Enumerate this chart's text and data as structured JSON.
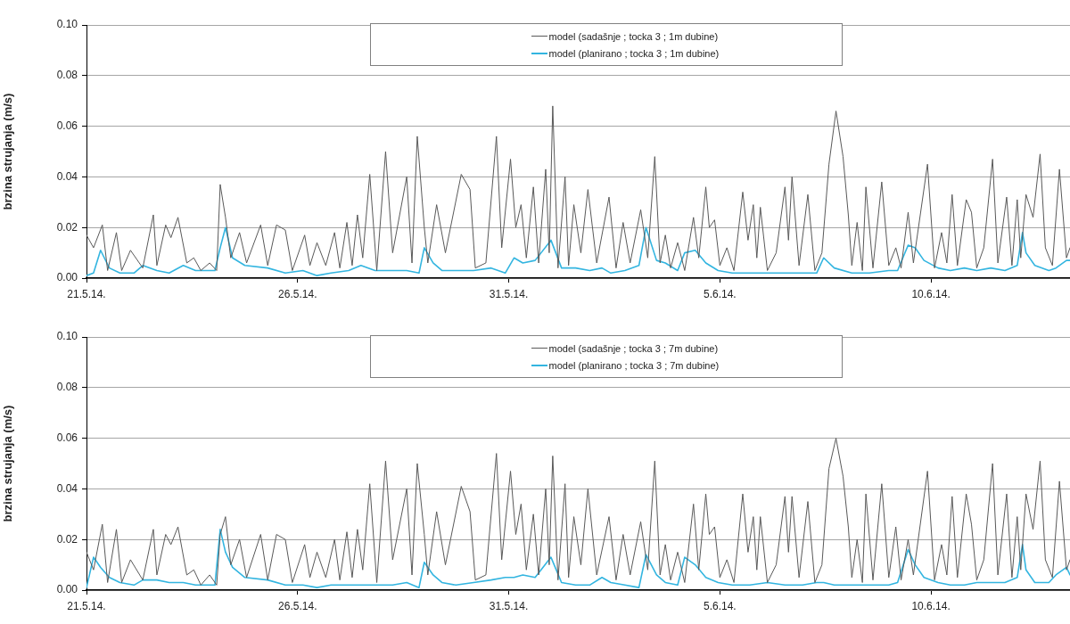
{
  "chart_data": [
    {
      "type": "line",
      "ylabel": "brzina strujanja (m/s)",
      "legend": "top",
      "grid": "y",
      "line_style": "solid",
      "marker": "none",
      "xlim": [
        "--05-21",
        "--06-13T07:00"
      ],
      "xticks": [
        {
          "value": "--05-21",
          "label": "21.5.14."
        },
        {
          "value": "--05-26",
          "label": "26.5.14."
        },
        {
          "value": "--05-31",
          "label": "31.5.14."
        },
        {
          "value": "--06-05",
          "label": "5.6.14."
        },
        {
          "value": "--06-10",
          "label": "10.6.14."
        }
      ],
      "ylim": [
        0,
        0.1
      ],
      "yticks": [
        {
          "value": 0,
          "label": "0.00"
        },
        {
          "value": 0.02,
          "label": "0.02"
        },
        {
          "value": 0.04,
          "label": "0.04"
        },
        {
          "value": 0.06,
          "label": "0.06"
        },
        {
          "value": 0.08,
          "label": "0.08"
        },
        {
          "value": 0.1,
          "label": "0.10"
        }
      ],
      "series": [
        {
          "name": "model (sadašnje ; tocka 3 ; 1m dubine)",
          "color": "#595959",
          "x": [
            "--05-21T00:00",
            "--05-21T04:00",
            "--05-21T09:00",
            "--05-21T12:00",
            "--05-21T17:00",
            "--05-21T20:00",
            "--05-22T01:00",
            "--05-22T08:00",
            "--05-22T14:00",
            "--05-22T16:00",
            "--05-22T21:00",
            "--05-23T00:00",
            "--05-23T04:00",
            "--05-23T09:00",
            "--05-23T13:00",
            "--05-23T17:00",
            "--05-23T22:00",
            "--05-24T02:00",
            "--05-24T04:00",
            "--05-24T07:00",
            "--05-24T10:00",
            "--05-24T15:00",
            "--05-24T19:00",
            "--05-25T03:00",
            "--05-25T07:00",
            "--05-25T12:00",
            "--05-25T17:00",
            "--05-25T21:00",
            "--05-26T04:00",
            "--05-26T07:00",
            "--05-26T11:00",
            "--05-26T16:00",
            "--05-26T21:00",
            "--05-27T00:00",
            "--05-27T04:00",
            "--05-27T07:00",
            "--05-27T10:00",
            "--05-27T13:00",
            "--05-27T17:00",
            "--05-27T21:00",
            "--05-28T02:00",
            "--05-28T06:00",
            "--05-28T14:00",
            "--05-28T17:00",
            "--05-28T20:00",
            "--05-29T00:00",
            "--05-29T02:00",
            "--05-29T07:00",
            "--05-29T12:00",
            "--05-29T21:00",
            "--05-30T02:00",
            "--05-30T05:00",
            "--05-30T11:00",
            "--05-30T17:00",
            "--05-30T20:00",
            "--05-31T01:00",
            "--05-31T04:00",
            "--05-31T07:00",
            "--05-31T10:00",
            "--05-31T14:00",
            "--05-31T17:00",
            "--05-31T21:00",
            "--05-31T23:00",
            "--06-01T01:00",
            "--06-01T04:00",
            "--06-01T08:00",
            "--06-01T10:00",
            "--06-01T13:00",
            "--06-01T17:00",
            "--06-01T21:00",
            "--06-02T02:00",
            "--06-02T09:00",
            "--06-02T13:00",
            "--06-02T17:00",
            "--06-02T21:00",
            "--06-03T03:00",
            "--06-03T07:00",
            "--06-03T11:00",
            "--06-03T14:00",
            "--06-03T17:00",
            "--06-03T20:00",
            "--06-04T00:00",
            "--06-04T04:00",
            "--06-04T09:00",
            "--06-04T12:00",
            "--06-04T16:00",
            "--06-04T18:00",
            "--06-04T21:00",
            "--06-05T00:00",
            "--06-05T04:00",
            "--06-05T08:00",
            "--06-05T13:00",
            "--06-05T16:00",
            "--06-05T19:00",
            "--06-05T21:00",
            "--06-05T23:00",
            "--06-06T03:00",
            "--06-06T08:00",
            "--06-06T13:00",
            "--06-06T15:00",
            "--06-06T17:00",
            "--06-06T21:00",
            "--06-07T02:00",
            "--06-07T06:00",
            "--06-07T10:00",
            "--06-07T14:00",
            "--06-07T18:00",
            "--06-07T22:00",
            "--06-08T01:00",
            "--06-08T03:00",
            "--06-08T06:00",
            "--06-08T09:00",
            "--06-08T11:00",
            "--06-08T15:00",
            "--06-08T20:00",
            "--06-09T00:00",
            "--06-09T04:00",
            "--06-09T07:00",
            "--06-09T11:00",
            "--06-09T14:00",
            "--06-09T22:00",
            "--06-10T02:00",
            "--06-10T06:00",
            "--06-10T09:00",
            "--06-10T12:00",
            "--06-10T15:00",
            "--06-10T20:00",
            "--06-10T23:00",
            "--06-11T02:00",
            "--06-11T06:00",
            "--06-11T11:00",
            "--06-11T14:00",
            "--06-11T19:00",
            "--06-11T22:00",
            "--06-12T01:00",
            "--06-12T03:00",
            "--06-12T06:00",
            "--06-12T10:00",
            "--06-12T14:00",
            "--06-12T17:00",
            "--06-12T21:00",
            "--06-13T01:00",
            "--06-13T05:00",
            "--06-13T07:00"
          ],
          "values": [
            0.017,
            0.012,
            0.021,
            0.003,
            0.018,
            0.003,
            0.011,
            0.004,
            0.025,
            0.005,
            0.021,
            0.016,
            0.024,
            0.006,
            0.008,
            0.003,
            0.006,
            0.003,
            0.037,
            0.024,
            0.008,
            0.018,
            0.006,
            0.021,
            0.005,
            0.021,
            0.019,
            0.003,
            0.017,
            0.005,
            0.014,
            0.005,
            0.018,
            0.004,
            0.022,
            0.005,
            0.025,
            0.008,
            0.041,
            0.003,
            0.05,
            0.01,
            0.04,
            0.006,
            0.056,
            0.02,
            0.006,
            0.029,
            0.01,
            0.041,
            0.035,
            0.004,
            0.006,
            0.056,
            0.012,
            0.047,
            0.02,
            0.029,
            0.008,
            0.036,
            0.006,
            0.043,
            0.01,
            0.068,
            0.004,
            0.04,
            0.005,
            0.029,
            0.01,
            0.035,
            0.006,
            0.032,
            0.004,
            0.022,
            0.006,
            0.027,
            0.008,
            0.048,
            0.006,
            0.017,
            0.004,
            0.014,
            0.003,
            0.024,
            0.008,
            0.036,
            0.02,
            0.023,
            0.005,
            0.012,
            0.003,
            0.034,
            0.015,
            0.029,
            0.008,
            0.028,
            0.003,
            0.01,
            0.036,
            0.015,
            0.04,
            0.005,
            0.033,
            0.003,
            0.01,
            0.045,
            0.066,
            0.048,
            0.025,
            0.005,
            0.022,
            0.003,
            0.036,
            0.004,
            0.038,
            0.005,
            0.012,
            0.004,
            0.026,
            0.006,
            0.045,
            0.004,
            0.018,
            0.006,
            0.033,
            0.005,
            0.031,
            0.026,
            0.004,
            0.012,
            0.047,
            0.006,
            0.032,
            0.005,
            0.031,
            0.008,
            0.033,
            0.024,
            0.049,
            0.012,
            0.005,
            0.043,
            0.008,
            0.012
          ]
        },
        {
          "name": "model (planirano ; tocka 3 ; 1m dubine)",
          "color": "#33b5e0",
          "x": [
            "--05-21T00:00",
            "--05-21T04:00",
            "--05-21T08:00",
            "--05-21T13:00",
            "--05-21T19:00",
            "--05-22T03:00",
            "--05-22T08:00",
            "--05-22T16:00",
            "--05-22T23:00",
            "--05-23T07:00",
            "--05-23T14:00",
            "--05-24T01:00",
            "--05-24T04:00",
            "--05-24T07:00",
            "--05-24T11:00",
            "--05-24T18:00",
            "--05-25T07:00",
            "--05-25T17:00",
            "--05-26T03:00",
            "--05-26T11:00",
            "--05-26T19:00",
            "--05-27T05:00",
            "--05-27T12:00",
            "--05-27T20:00",
            "--05-28T06:00",
            "--05-28T14:00",
            "--05-28T21:00",
            "--05-29T00:00",
            "--05-29T05:00",
            "--05-29T10:00",
            "--05-29T18:00",
            "--05-30T04:00",
            "--05-30T14:00",
            "--05-30T22:00",
            "--05-31T03:00",
            "--05-31T08:00",
            "--05-31T15:00",
            "--06-01T00:00",
            "--06-01T06:00",
            "--06-01T14:00",
            "--06-01T22:00",
            "--06-02T05:00",
            "--06-02T10:00",
            "--06-02T18:00",
            "--06-03T02:00",
            "--06-03T06:00",
            "--06-03T12:00",
            "--06-03T17:00",
            "--06-04T00:00",
            "--06-04T04:00",
            "--06-04T10:00",
            "--06-04T16:00",
            "--06-04T23:00",
            "--06-05T07:00",
            "--06-05T17:00",
            "--06-06T03:00",
            "--06-06T13:00",
            "--06-06T23:00",
            "--06-07T07:00",
            "--06-07T11:00",
            "--06-07T17:00",
            "--06-08T03:00",
            "--06-08T13:00",
            "--06-09T00:00",
            "--06-09T05:00",
            "--06-09T11:00",
            "--06-09T15:00",
            "--06-09T20:00",
            "--06-10T04:00",
            "--06-10T11:00",
            "--06-10T19:00",
            "--06-11T02:00",
            "--06-11T10:00",
            "--06-11T18:00",
            "--06-12T01:00",
            "--06-12T04:00",
            "--06-12T06:00",
            "--06-12T11:00",
            "--06-12T19:00",
            "--06-12T23:00",
            "--06-13T05:00",
            "--06-13T07:00"
          ],
          "values": [
            0.001,
            0.002,
            0.011,
            0.004,
            0.002,
            0.002,
            0.005,
            0.003,
            0.002,
            0.005,
            0.003,
            0.003,
            0.012,
            0.02,
            0.008,
            0.005,
            0.004,
            0.002,
            0.003,
            0.001,
            0.002,
            0.003,
            0.005,
            0.003,
            0.003,
            0.003,
            0.002,
            0.012,
            0.006,
            0.003,
            0.003,
            0.003,
            0.004,
            0.002,
            0.008,
            0.006,
            0.007,
            0.015,
            0.004,
            0.004,
            0.003,
            0.004,
            0.002,
            0.003,
            0.005,
            0.02,
            0.007,
            0.006,
            0.003,
            0.01,
            0.011,
            0.006,
            0.003,
            0.002,
            0.002,
            0.002,
            0.002,
            0.002,
            0.002,
            0.008,
            0.004,
            0.002,
            0.002,
            0.003,
            0.003,
            0.013,
            0.012,
            0.007,
            0.004,
            0.003,
            0.004,
            0.003,
            0.004,
            0.003,
            0.005,
            0.018,
            0.01,
            0.005,
            0.003,
            0.004,
            0.007,
            0.007
          ]
        }
      ]
    },
    {
      "type": "line",
      "ylabel": "brzina strujanja (m/s)",
      "legend": "top",
      "grid": "y",
      "line_style": "solid",
      "marker": "none",
      "xlim": [
        "--05-21",
        "--06-13T07:00"
      ],
      "xticks": [
        {
          "value": "--05-21",
          "label": "21.5.14."
        },
        {
          "value": "--05-26",
          "label": "26.5.14."
        },
        {
          "value": "--05-31",
          "label": "31.5.14."
        },
        {
          "value": "--06-05",
          "label": "5.6.14."
        },
        {
          "value": "--06-10",
          "label": "10.6.14."
        }
      ],
      "ylim": [
        0,
        0.1
      ],
      "yticks": [
        {
          "value": 0,
          "label": "0.00"
        },
        {
          "value": 0.02,
          "label": "0.02"
        },
        {
          "value": 0.04,
          "label": "0.04"
        },
        {
          "value": 0.06,
          "label": "0.06"
        },
        {
          "value": 0.08,
          "label": "0.08"
        },
        {
          "value": 0.1,
          "label": "0.10"
        }
      ],
      "series": [
        {
          "name": "model (sadašnje ; tocka 3 ; 7m dubine)",
          "color": "#595959",
          "x": [
            "--05-21T00:00",
            "--05-21T04:00",
            "--05-21T09:00",
            "--05-21T12:00",
            "--05-21T17:00",
            "--05-21T20:00",
            "--05-22T01:00",
            "--05-22T08:00",
            "--05-22T14:00",
            "--05-22T16:00",
            "--05-22T21:00",
            "--05-23T00:00",
            "--05-23T04:00",
            "--05-23T09:00",
            "--05-23T13:00",
            "--05-23T17:00",
            "--05-23T22:00",
            "--05-24T02:00",
            "--05-24T04:00",
            "--05-24T07:00",
            "--05-24T10:00",
            "--05-24T15:00",
            "--05-24T19:00",
            "--05-25T03:00",
            "--05-25T07:00",
            "--05-25T12:00",
            "--05-25T17:00",
            "--05-25T21:00",
            "--05-26T04:00",
            "--05-26T07:00",
            "--05-26T11:00",
            "--05-26T16:00",
            "--05-26T21:00",
            "--05-27T00:00",
            "--05-27T04:00",
            "--05-27T07:00",
            "--05-27T10:00",
            "--05-27T13:00",
            "--05-27T17:00",
            "--05-27T21:00",
            "--05-28T02:00",
            "--05-28T06:00",
            "--05-28T14:00",
            "--05-28T17:00",
            "--05-28T20:00",
            "--05-29T00:00",
            "--05-29T02:00",
            "--05-29T07:00",
            "--05-29T12:00",
            "--05-29T21:00",
            "--05-30T02:00",
            "--05-30T05:00",
            "--05-30T11:00",
            "--05-30T17:00",
            "--05-30T20:00",
            "--05-31T01:00",
            "--05-31T04:00",
            "--05-31T07:00",
            "--05-31T10:00",
            "--05-31T14:00",
            "--05-31T17:00",
            "--05-31T21:00",
            "--05-31T23:00",
            "--06-01T01:00",
            "--06-01T04:00",
            "--06-01T08:00",
            "--06-01T10:00",
            "--06-01T13:00",
            "--06-01T17:00",
            "--06-01T21:00",
            "--06-02T02:00",
            "--06-02T09:00",
            "--06-02T13:00",
            "--06-02T17:00",
            "--06-02T21:00",
            "--06-03T03:00",
            "--06-03T07:00",
            "--06-03T11:00",
            "--06-03T14:00",
            "--06-03T17:00",
            "--06-03T20:00",
            "--06-04T00:00",
            "--06-04T04:00",
            "--06-04T09:00",
            "--06-04T12:00",
            "--06-04T16:00",
            "--06-04T18:00",
            "--06-04T21:00",
            "--06-05T00:00",
            "--06-05T04:00",
            "--06-05T08:00",
            "--06-05T13:00",
            "--06-05T16:00",
            "--06-05T19:00",
            "--06-05T21:00",
            "--06-05T23:00",
            "--06-06T03:00",
            "--06-06T08:00",
            "--06-06T13:00",
            "--06-06T15:00",
            "--06-06T17:00",
            "--06-06T21:00",
            "--06-07T02:00",
            "--06-07T06:00",
            "--06-07T10:00",
            "--06-07T14:00",
            "--06-07T18:00",
            "--06-07T22:00",
            "--06-08T01:00",
            "--06-08T03:00",
            "--06-08T06:00",
            "--06-08T09:00",
            "--06-08T11:00",
            "--06-08T15:00",
            "--06-08T20:00",
            "--06-09T00:00",
            "--06-09T04:00",
            "--06-09T07:00",
            "--06-09T11:00",
            "--06-09T14:00",
            "--06-09T22:00",
            "--06-10T02:00",
            "--06-10T06:00",
            "--06-10T09:00",
            "--06-10T12:00",
            "--06-10T15:00",
            "--06-10T20:00",
            "--06-10T23:00",
            "--06-11T02:00",
            "--06-11T06:00",
            "--06-11T11:00",
            "--06-11T14:00",
            "--06-11T19:00",
            "--06-11T22:00",
            "--06-12T01:00",
            "--06-12T03:00",
            "--06-12T06:00",
            "--06-12T10:00",
            "--06-12T14:00",
            "--06-12T17:00",
            "--06-12T21:00",
            "--06-13T01:00",
            "--06-13T05:00",
            "--06-13T07:00"
          ],
          "values": [
            0.015,
            0.008,
            0.026,
            0.003,
            0.024,
            0.003,
            0.012,
            0.004,
            0.024,
            0.006,
            0.022,
            0.018,
            0.025,
            0.006,
            0.008,
            0.002,
            0.006,
            0.002,
            0.022,
            0.029,
            0.01,
            0.02,
            0.005,
            0.022,
            0.004,
            0.022,
            0.02,
            0.003,
            0.018,
            0.005,
            0.015,
            0.005,
            0.02,
            0.004,
            0.023,
            0.005,
            0.024,
            0.008,
            0.042,
            0.003,
            0.051,
            0.012,
            0.04,
            0.006,
            0.05,
            0.022,
            0.006,
            0.031,
            0.01,
            0.041,
            0.031,
            0.004,
            0.006,
            0.054,
            0.012,
            0.047,
            0.022,
            0.034,
            0.008,
            0.03,
            0.006,
            0.04,
            0.01,
            0.053,
            0.004,
            0.042,
            0.005,
            0.029,
            0.01,
            0.04,
            0.006,
            0.029,
            0.004,
            0.022,
            0.006,
            0.027,
            0.008,
            0.051,
            0.006,
            0.018,
            0.004,
            0.015,
            0.003,
            0.034,
            0.008,
            0.038,
            0.022,
            0.025,
            0.005,
            0.012,
            0.003,
            0.038,
            0.015,
            0.029,
            0.008,
            0.029,
            0.003,
            0.01,
            0.037,
            0.015,
            0.037,
            0.005,
            0.035,
            0.003,
            0.01,
            0.048,
            0.06,
            0.045,
            0.025,
            0.005,
            0.02,
            0.003,
            0.038,
            0.004,
            0.042,
            0.005,
            0.025,
            0.004,
            0.02,
            0.006,
            0.047,
            0.004,
            0.018,
            0.006,
            0.037,
            0.005,
            0.038,
            0.026,
            0.004,
            0.012,
            0.05,
            0.006,
            0.038,
            0.005,
            0.029,
            0.008,
            0.038,
            0.024,
            0.051,
            0.012,
            0.005,
            0.043,
            0.008,
            0.012
          ]
        },
        {
          "name": "model (planirano ; tocka 3 ; 7m dubine)",
          "color": "#33b5e0",
          "x": [
            "--05-21T00:00",
            "--05-21T04:00",
            "--05-21T08:00",
            "--05-21T13:00",
            "--05-21T19:00",
            "--05-22T03:00",
            "--05-22T08:00",
            "--05-22T16:00",
            "--05-22T23:00",
            "--05-23T07:00",
            "--05-23T14:00",
            "--05-24T01:00",
            "--05-24T04:00",
            "--05-24T07:00",
            "--05-24T11:00",
            "--05-24T18:00",
            "--05-25T07:00",
            "--05-25T17:00",
            "--05-26T03:00",
            "--05-26T11:00",
            "--05-26T19:00",
            "--05-27T05:00",
            "--05-27T12:00",
            "--05-27T20:00",
            "--05-28T06:00",
            "--05-28T14:00",
            "--05-28T21:00",
            "--05-29T00:00",
            "--05-29T05:00",
            "--05-29T10:00",
            "--05-29T18:00",
            "--05-30T04:00",
            "--05-30T14:00",
            "--05-30T22:00",
            "--05-31T03:00",
            "--05-31T08:00",
            "--05-31T15:00",
            "--06-01T00:00",
            "--06-01T06:00",
            "--06-01T14:00",
            "--06-01T22:00",
            "--06-02T05:00",
            "--06-02T10:00",
            "--06-02T18:00",
            "--06-03T02:00",
            "--06-03T06:00",
            "--06-03T12:00",
            "--06-03T17:00",
            "--06-04T00:00",
            "--06-04T04:00",
            "--06-04T10:00",
            "--06-04T16:00",
            "--06-04T23:00",
            "--06-05T07:00",
            "--06-05T17:00",
            "--06-06T03:00",
            "--06-06T13:00",
            "--06-06T23:00",
            "--06-07T07:00",
            "--06-07T11:00",
            "--06-07T17:00",
            "--06-08T03:00",
            "--06-08T13:00",
            "--06-09T00:00",
            "--06-09T05:00",
            "--06-09T11:00",
            "--06-09T15:00",
            "--06-09T20:00",
            "--06-10T04:00",
            "--06-10T11:00",
            "--06-10T19:00",
            "--06-11T02:00",
            "--06-11T10:00",
            "--06-11T18:00",
            "--06-12T01:00",
            "--06-12T04:00",
            "--06-12T06:00",
            "--06-12T11:00",
            "--06-12T19:00",
            "--06-12T23:00",
            "--06-13T05:00",
            "--06-13T07:00"
          ],
          "values": [
            0.001,
            0.013,
            0.009,
            0.005,
            0.003,
            0.002,
            0.004,
            0.004,
            0.003,
            0.003,
            0.002,
            0.002,
            0.024,
            0.015,
            0.009,
            0.005,
            0.004,
            0.002,
            0.002,
            0.001,
            0.002,
            0.002,
            0.002,
            0.002,
            0.002,
            0.003,
            0.001,
            0.011,
            0.006,
            0.003,
            0.002,
            0.003,
            0.004,
            0.005,
            0.005,
            0.006,
            0.005,
            0.013,
            0.003,
            0.002,
            0.002,
            0.005,
            0.003,
            0.002,
            0.001,
            0.014,
            0.006,
            0.003,
            0.002,
            0.013,
            0.01,
            0.005,
            0.003,
            0.002,
            0.002,
            0.003,
            0.002,
            0.002,
            0.003,
            0.003,
            0.002,
            0.002,
            0.002,
            0.002,
            0.003,
            0.016,
            0.01,
            0.005,
            0.003,
            0.002,
            0.002,
            0.003,
            0.003,
            0.003,
            0.005,
            0.018,
            0.008,
            0.003,
            0.003,
            0.006,
            0.009,
            0.006
          ]
        }
      ]
    }
  ]
}
